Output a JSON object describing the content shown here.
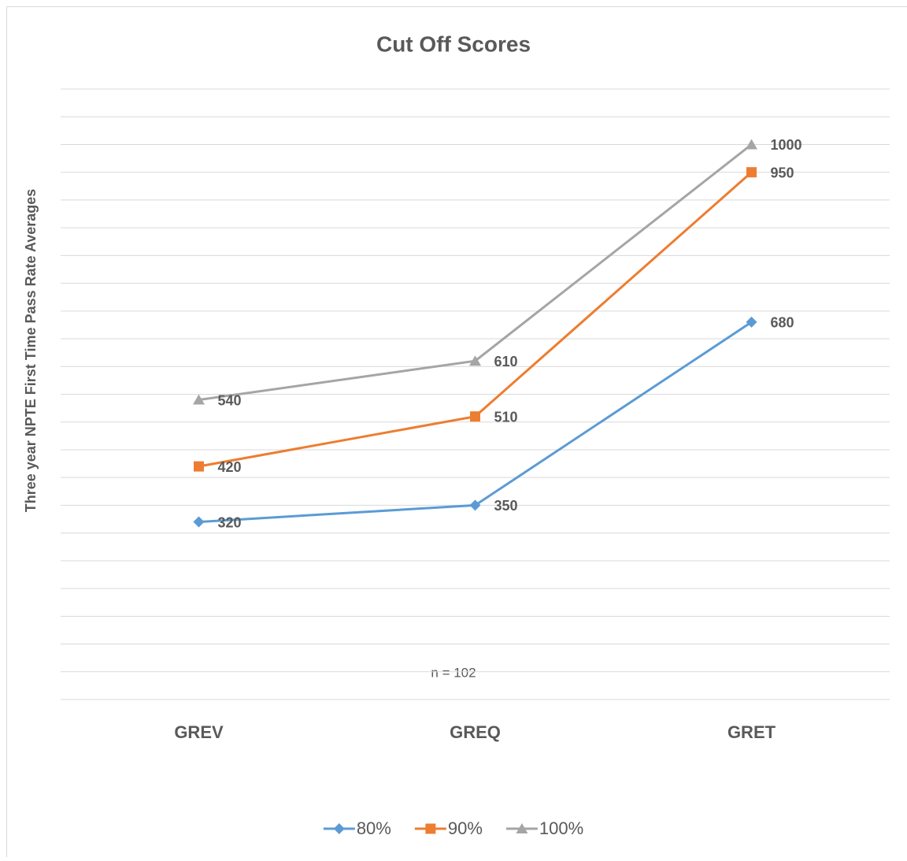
{
  "chart_data": {
    "type": "line",
    "title": "Cut Off Scores",
    "y_label": "Three year NPTE First Time Pass Rate Averages",
    "x_label": "n = 102",
    "categories": [
      "GREV",
      "GREQ",
      "GRET"
    ],
    "series": [
      {
        "name": "80%",
        "color": "#5b9bd5",
        "marker": "diamond",
        "values": [
          320,
          350,
          680
        ]
      },
      {
        "name": "90%",
        "color": "#ed7d31",
        "marker": "square",
        "values": [
          420,
          510,
          950
        ]
      },
      {
        "name": "100%",
        "color": "#a5a5a5",
        "marker": "triangle",
        "values": [
          540,
          610,
          1000
        ]
      }
    ],
    "ylim": [
      0,
      1100
    ],
    "yticks": [
      0,
      50,
      100,
      150,
      200,
      250,
      300,
      350,
      400,
      450,
      500,
      550,
      600,
      650,
      700,
      750,
      800,
      850,
      900,
      950,
      1000,
      1050,
      1100
    ],
    "grid": true,
    "legend": "bottom"
  }
}
